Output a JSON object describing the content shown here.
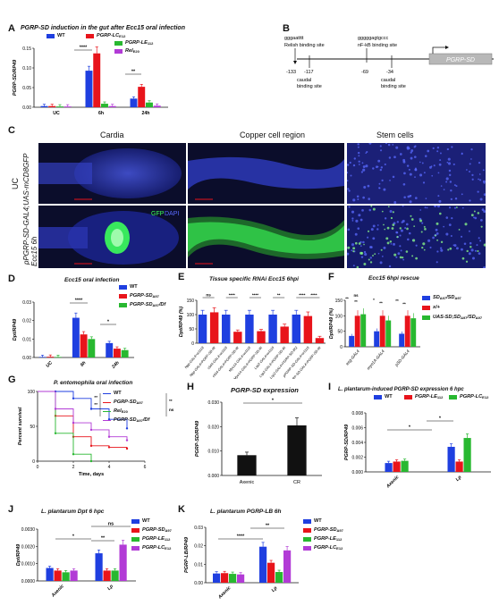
{
  "panels": {
    "A": {
      "label": "A",
      "title": "PGRP-SD induction in the gut after Ecc15 oral infection"
    },
    "B": {
      "label": "B"
    },
    "C": {
      "label": "C"
    },
    "D": {
      "label": "D",
      "title": "Ecc15 oral infection"
    },
    "E": {
      "label": "E",
      "title": "Tissue specific RNAi Ecc15 6hpi"
    },
    "F": {
      "label": "F",
      "title": "Ecc15 6hpi rescue"
    },
    "G": {
      "label": "G",
      "title": "P. entomophila oral infection"
    },
    "H": {
      "label": "H",
      "title": "PGRP-SD expression"
    },
    "I": {
      "label": "I",
      "title": "L. plantarum-induced PGRP-SD expression 6 hpc"
    },
    "J": {
      "label": "J",
      "title": "L. plantarum Dpt 6 hpc"
    },
    "K": {
      "label": "K",
      "title": "L. plantarum PGRP-LB 6h"
    }
  },
  "colors": {
    "blue": "#1f3fe0",
    "red": "#e8141b",
    "green": "#28b830",
    "purple": "#b23bd6",
    "black": "#111111",
    "gfp": "#3cff5a",
    "dapi": "#3040c8"
  },
  "promoter": {
    "motif_left": "gggaatttt",
    "relish_site": "Relish binding site",
    "motif_right": "gggggagtgccc",
    "nfkb_site": "nF-kB binding site",
    "pos_133": "-133",
    "pos_117": "-117",
    "pos_69": "-69",
    "pos_34": "-34",
    "caudal_1": "caudal",
    "caudal_1b": "binding site",
    "caudal_2": "caudal",
    "caudal_2b": "binding site",
    "gene": "PGRP-SD"
  },
  "micrographs": {
    "col_headers": [
      "Cardia",
      "Copper cell region",
      "Stem cells"
    ],
    "row_uc": "UC",
    "row_ecc": "Ecc15 6h",
    "genotype": "pPGRP-SD-GAL4;UAS-mCD8GFP",
    "gfp": "GFP",
    "dapi": "DAPI"
  },
  "chart_data": [
    {
      "id": "A",
      "type": "bar",
      "title": "PGRP-SD induction in the gut after Ecc15 oral infection",
      "ylabel": "PGRP-SD/RP49",
      "ylim": [
        0,
        0.15
      ],
      "yticks": [
        "0.00",
        "0.05",
        "0.10",
        "0.15"
      ],
      "categories": [
        "UC",
        "6h",
        "24h"
      ],
      "series": [
        {
          "name": "WT",
          "color": "#1f3fe0",
          "values": [
            0.003,
            0.093,
            0.022
          ]
        },
        {
          "name": "PGRP-LC",
          "sup": "E12",
          "color": "#e8141b",
          "values": [
            0.003,
            0.137,
            0.052
          ]
        },
        {
          "name": "PGRP-LE",
          "sup": "112",
          "color": "#28b830",
          "values": [
            0.002,
            0.009,
            0.012
          ]
        },
        {
          "name": "Rel",
          "sup": "E20",
          "color": "#b23bd6",
          "values": [
            0.002,
            0.003,
            0.004
          ]
        }
      ],
      "annotations": [
        "****",
        "**"
      ]
    },
    {
      "id": "D",
      "type": "bar",
      "title": "Ecc15 oral infection",
      "ylabel": "Dpt/RP49",
      "ylim": [
        0,
        0.03
      ],
      "yticks": [
        "0.00",
        "0.01",
        "0.02",
        "0.03"
      ],
      "categories": [
        "UC",
        "6h",
        "24h"
      ],
      "series": [
        {
          "name": "WT",
          "color": "#1f3fe0",
          "values": [
            0.0003,
            0.0215,
            0.0078
          ]
        },
        {
          "name": "PGRP-SD",
          "sup": "Δ97",
          "color": "#e8141b",
          "values": [
            0.0004,
            0.0125,
            0.0048
          ]
        },
        {
          "name": "PGRP-SD",
          "sup": "Δ97",
          "suffix": "/Df",
          "color": "#28b830",
          "values": [
            0.0003,
            0.01,
            0.004
          ]
        }
      ],
      "annotations": [
        "****",
        "*"
      ]
    },
    {
      "id": "E",
      "type": "bar",
      "title": "Tissue specific RNAi Ecc15 6hpi",
      "ylabel": "Dpt/RP49 (%)",
      "ylim": [
        0,
        150
      ],
      "yticks": [
        "0",
        "50",
        "100",
        "150"
      ],
      "categories": [
        "Npp-GAL4>w1118",
        "Npp-GAL4>PGRP-SD-IR",
        "c564-GAL4>w1118",
        "c564-GAL4>PGRP-SD-IR",
        "Myo1A-GAL4>w1118",
        "Myo1A-GAL4>PGRP-SD-IR",
        "Lsp2-GAL4>w1118",
        "Lsp2-GAL4>PGRP-SD-IR",
        "Lsp2-GAL4>PGRP-SD-IR2",
        "pPGRP-SD-GAL4>w1118",
        "pPGRP-SD-GAL4>PGRP-SD-IR"
      ],
      "values": [
        100,
        108,
        100,
        40,
        100,
        42,
        100,
        58,
        100,
        95,
        18
      ],
      "bar_colors": [
        "#1f3fe0",
        "#e8141b",
        "#1f3fe0",
        "#e8141b",
        "#1f3fe0",
        "#e8141b",
        "#1f3fe0",
        "#e8141b",
        "#1f3fe0",
        "#e8141b",
        "#e8141b"
      ],
      "annotations": [
        "ns",
        "****",
        "****",
        "**",
        "****",
        "****"
      ]
    },
    {
      "id": "F",
      "type": "bar",
      "title": "Ecc15 6hpi rescue",
      "ylabel": "Dpt/RP49 (%)",
      "ylim": [
        0,
        150
      ],
      "yticks": [
        "0",
        "50",
        "100",
        "150"
      ],
      "categories": [
        "esg-GAL4",
        "myo1A-GAL4",
        "pSD-GAL4"
      ],
      "series": [
        {
          "name": "SD",
          "sup": "Δ97",
          "suffix": "/SD",
          "sup2": "Δ97",
          "color": "#1f3fe0",
          "values": [
            35,
            50,
            42
          ]
        },
        {
          "name": "x/+",
          "color": "#e8141b",
          "values": [
            100,
            100,
            100
          ]
        },
        {
          "name": "UAS-SD;SD",
          "sup": "Δ97",
          "suffix": "/SD",
          "sup2": "Δ97",
          "color": "#28b830",
          "values": [
            105,
            85,
            92
          ]
        }
      ],
      "annotations": [
        "**",
        "ns",
        "**",
        "*",
        "**",
        "**",
        "**"
      ]
    },
    {
      "id": "G",
      "type": "line",
      "title": "P. entomophila oral infection",
      "ylabel": "Percent survival",
      "xlabel": "Time, days",
      "ylim": [
        0,
        100
      ],
      "xlim": [
        0,
        6
      ],
      "yticks": [
        "0",
        "50",
        "100"
      ],
      "xticks": [
        "0",
        "2",
        "4",
        "6"
      ],
      "series": [
        {
          "name": "WT",
          "color": "#1f3fe0",
          "x": [
            0,
            1,
            2,
            3,
            4,
            5
          ],
          "y": [
            100,
            100,
            90,
            75,
            60,
            47
          ]
        },
        {
          "name": "PGRP-SD",
          "sup": "Δ97",
          "color": "#e8141b",
          "x": [
            0,
            1,
            2,
            3,
            4,
            5
          ],
          "y": [
            100,
            65,
            35,
            22,
            20,
            18
          ]
        },
        {
          "name": "Rel",
          "sup": "E20",
          "color": "#28b830",
          "x": [
            0,
            1,
            2,
            3
          ],
          "y": [
            100,
            40,
            10,
            0
          ]
        },
        {
          "name": "PGRP-SD",
          "sup": "Δ97",
          "suffix": "/Df",
          "color": "#b23bd6",
          "x": [
            0,
            1,
            2,
            3,
            4,
            5
          ],
          "y": [
            100,
            75,
            55,
            45,
            35,
            30
          ]
        }
      ],
      "annotations": [
        "**",
        "**",
        "**",
        "ns"
      ]
    },
    {
      "id": "H",
      "type": "bar",
      "title": "PGRP-SD expression",
      "ylabel": "PGRP-SD/RP49",
      "ylim": [
        0,
        0.03
      ],
      "yticks": [
        "0.000",
        "0.010",
        "0.020",
        "0.030"
      ],
      "categories": [
        "Axenic",
        "CR"
      ],
      "values": [
        0.0083,
        0.0205
      ],
      "annotations": [
        "*"
      ]
    },
    {
      "id": "I",
      "type": "bar",
      "title": "L. plantarum-induced PGRP-SD expression 6 hpc",
      "ylabel": "PGRP-SD/RP49",
      "ylim": [
        0,
        0.008
      ],
      "yticks": [
        "0.000",
        "0.002",
        "0.004",
        "0.006",
        "0.008"
      ],
      "categories": [
        "Axenic",
        "Lp"
      ],
      "series": [
        {
          "name": "WT",
          "color": "#1f3fe0",
          "values": [
            0.0012,
            0.0034
          ]
        },
        {
          "name": "PGRP-LE",
          "sup": "112",
          "color": "#e8141b",
          "values": [
            0.0014,
            0.0014
          ]
        },
        {
          "name": "PGRP-LC",
          "sup": "E12",
          "color": "#28b830",
          "values": [
            0.0015,
            0.0046
          ]
        }
      ],
      "annotations": [
        "*",
        "*",
        "ns"
      ]
    },
    {
      "id": "J",
      "type": "bar",
      "title": "L. plantarum Dpt 6 hpc",
      "ylabel": "Dpt/RP49",
      "ylim": [
        0,
        0.003
      ],
      "yticks": [
        "0.0000",
        "0.0010",
        "0.0020",
        "0.0030"
      ],
      "categories": [
        "Axenic",
        "Lp"
      ],
      "series": [
        {
          "name": "WT",
          "color": "#1f3fe0",
          "values": [
            0.00075,
            0.0016
          ]
        },
        {
          "name": "PGRP-SD",
          "sup": "Δ97",
          "color": "#e8141b",
          "values": [
            0.0006,
            0.0006
          ]
        },
        {
          "name": "PGRP-LE",
          "sup": "112",
          "color": "#28b830",
          "values": [
            0.0005,
            0.0006
          ]
        },
        {
          "name": "PGRP-LC",
          "sup": "E12",
          "color": "#b23bd6",
          "values": [
            0.0006,
            0.0021
          ]
        }
      ],
      "annotations": [
        "*",
        "**",
        "ns"
      ]
    },
    {
      "id": "K",
      "type": "bar",
      "title": "L. plantarum PGRP-LB 6h",
      "ylabel": "PGRP-LB/RP49",
      "ylim": [
        0,
        0.03
      ],
      "yticks": [
        "0.00",
        "0.01",
        "0.02",
        "0.03"
      ],
      "categories": [
        "Axenic",
        "Lp"
      ],
      "series": [
        {
          "name": "WT",
          "color": "#1f3fe0",
          "values": [
            0.005,
            0.0195
          ]
        },
        {
          "name": "PGRP-SD",
          "sup": "Δ97",
          "color": "#e8141b",
          "values": [
            0.0052,
            0.0108
          ]
        },
        {
          "name": "PGRP-LE",
          "sup": "112",
          "color": "#28b830",
          "values": [
            0.0048,
            0.0058
          ]
        },
        {
          "name": "PGRP-LC",
          "sup": "E12",
          "color": "#b23bd6",
          "values": [
            0.0045,
            0.0175
          ]
        }
      ],
      "annotations": [
        "****",
        "**",
        "****",
        "ns"
      ]
    }
  ]
}
